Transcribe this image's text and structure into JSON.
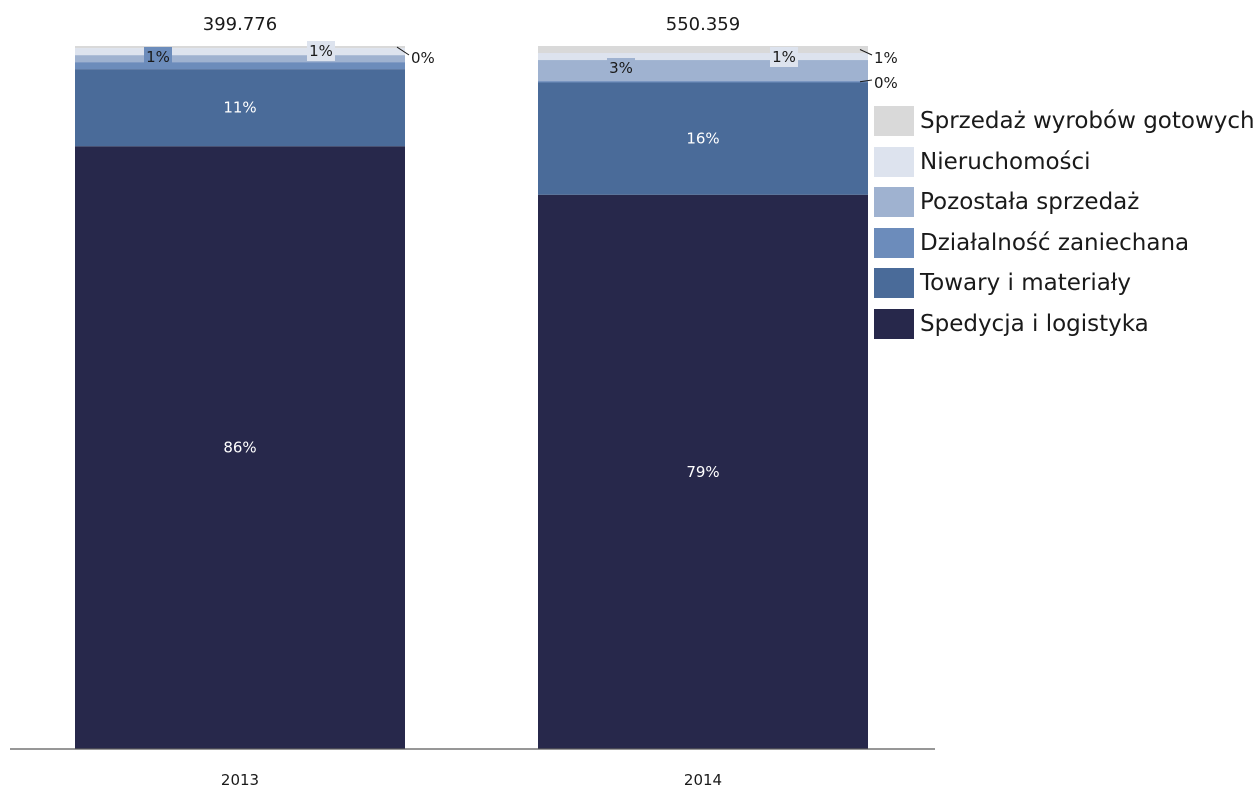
{
  "chart_data": {
    "type": "bar",
    "stacked": true,
    "normalized": true,
    "categories": [
      "2013",
      "2014"
    ],
    "totals": [
      "399.776",
      "550.359"
    ],
    "series": [
      {
        "name": "Spedycja i logistyka",
        "color": "#27284b",
        "values": [
          86,
          79
        ],
        "labels": [
          "86%",
          "79%"
        ]
      },
      {
        "name": "Towary i materiały",
        "color": "#4a6b99",
        "values": [
          11,
          16
        ],
        "labels": [
          "11%",
          "16%"
        ]
      },
      {
        "name": "Działalność zaniechana",
        "color": "#6c8cbb",
        "values": [
          1,
          0.2
        ],
        "labels": [
          "1%",
          "0%"
        ]
      },
      {
        "name": "Pozostała sprzedaż",
        "color": "#9fb2d0",
        "values": [
          1,
          3
        ],
        "labels": [
          "1%",
          "3%"
        ]
      },
      {
        "name": "Nieruchomości",
        "color": "#dde3ee",
        "values": [
          1,
          1
        ],
        "labels": [
          "1%",
          "1%"
        ]
      },
      {
        "name": "Sprzedaż wyrobów gotowych",
        "color": "#d9d9d9",
        "values": [
          0.3,
          1
        ],
        "labels": [
          "0%",
          "1%"
        ]
      }
    ],
    "legend_position": "right",
    "grid": false
  }
}
